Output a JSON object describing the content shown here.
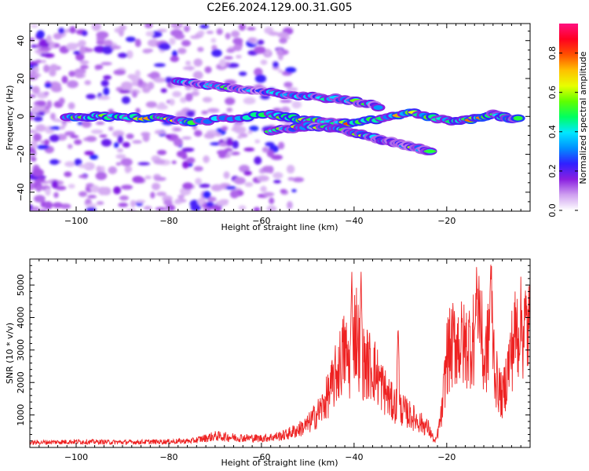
{
  "title": "C2E6.2024.129.00.31.G05",
  "chart_data": [
    {
      "type": "heatmap",
      "xlabel": "Height of straight line (km)",
      "ylabel": "Frequency (Hz)",
      "xlim": [
        -110,
        -2
      ],
      "ylim": [
        -50,
        49
      ],
      "xticks": [
        -100,
        -80,
        -60,
        -40,
        -20
      ],
      "yticks": [
        -40,
        -20,
        0,
        20,
        40
      ],
      "colorbar": {
        "label": "Normalized spectral amplitude",
        "range": [
          0,
          0.95
        ],
        "ticks": [
          "0.0",
          "0.2",
          "0.4",
          "0.6",
          "0.8"
        ],
        "tick_values": [
          0,
          0.2,
          0.4,
          0.6,
          0.8
        ],
        "colors": [
          "#ffffff",
          "#cfa0f0",
          "#8a1fe0",
          "#3020ff",
          "#0090ff",
          "#00e8ff",
          "#00ff60",
          "#60ff00",
          "#e8ff00",
          "#ffc000",
          "#ff5000",
          "#ff0020",
          "#ff1080"
        ]
      },
      "features": [
        {
          "name": "upper track",
          "x": [
            -78,
            -70,
            -62,
            -52,
            -42,
            -34
          ],
          "y": [
            19,
            16,
            14,
            11,
            9,
            5
          ],
          "amplitude": 0.6
        },
        {
          "name": "zero track",
          "x": [
            -102,
            -93,
            -82,
            -75,
            -58,
            -50,
            -40,
            -28,
            -18,
            -10,
            -4
          ],
          "y": [
            0,
            0,
            -1,
            -3,
            1,
            -2,
            -4,
            2,
            -3,
            1,
            -2
          ],
          "amplitude": 0.85
        },
        {
          "name": "lower track",
          "x": [
            -58,
            -50,
            -42,
            -35,
            -29,
            -23
          ],
          "y": [
            -8,
            -5,
            -7,
            -12,
            -15,
            -19
          ],
          "amplitude": 0.65
        }
      ]
    },
    {
      "type": "line",
      "xlabel": "Height of straight line (km)",
      "ylabel": "SNR (10 * v/v)",
      "xlim": [
        -110,
        -2
      ],
      "ylim": [
        0,
        5800
      ],
      "xticks": [
        -100,
        -80,
        -60,
        -40,
        -20
      ],
      "yticks": [
        1000,
        2000,
        3000,
        4000,
        5000
      ],
      "color": "#ee2222",
      "series": [
        {
          "name": "SNR",
          "x": [
            -110,
            -100,
            -90,
            -80,
            -75,
            -70,
            -65,
            -60,
            -57,
            -55,
            -52,
            -50,
            -47,
            -45,
            -43,
            -42,
            -41,
            -40,
            -39.5,
            -39,
            -38,
            -36,
            -34,
            -32,
            -30,
            -28,
            -26,
            -24,
            -22.5,
            -22,
            -21,
            -20,
            -18,
            -16,
            -14,
            -13,
            -12,
            -11,
            -10.5,
            -9.5,
            -8,
            -6,
            -5,
            -3,
            -2
          ],
          "y": [
            150,
            180,
            160,
            180,
            200,
            350,
            300,
            280,
            330,
            380,
            550,
            700,
            1200,
            1800,
            2600,
            3000,
            2500,
            3500,
            3600,
            3100,
            2600,
            2500,
            1900,
            1400,
            1200,
            1000,
            800,
            600,
            150,
            400,
            1100,
            2800,
            3300,
            3100,
            3400,
            4500,
            2500,
            3200,
            4600,
            2200,
            1500,
            3000,
            3600,
            3700,
            3650
          ],
          "peaks": [
            [
              -40.5,
              5450
            ],
            [
              -38.5,
              5500
            ],
            [
              -30.5,
              3800
            ],
            [
              -13.5,
              5200
            ],
            [
              -10.5,
              5750
            ],
            [
              -4,
              4200
            ]
          ]
        }
      ]
    }
  ]
}
